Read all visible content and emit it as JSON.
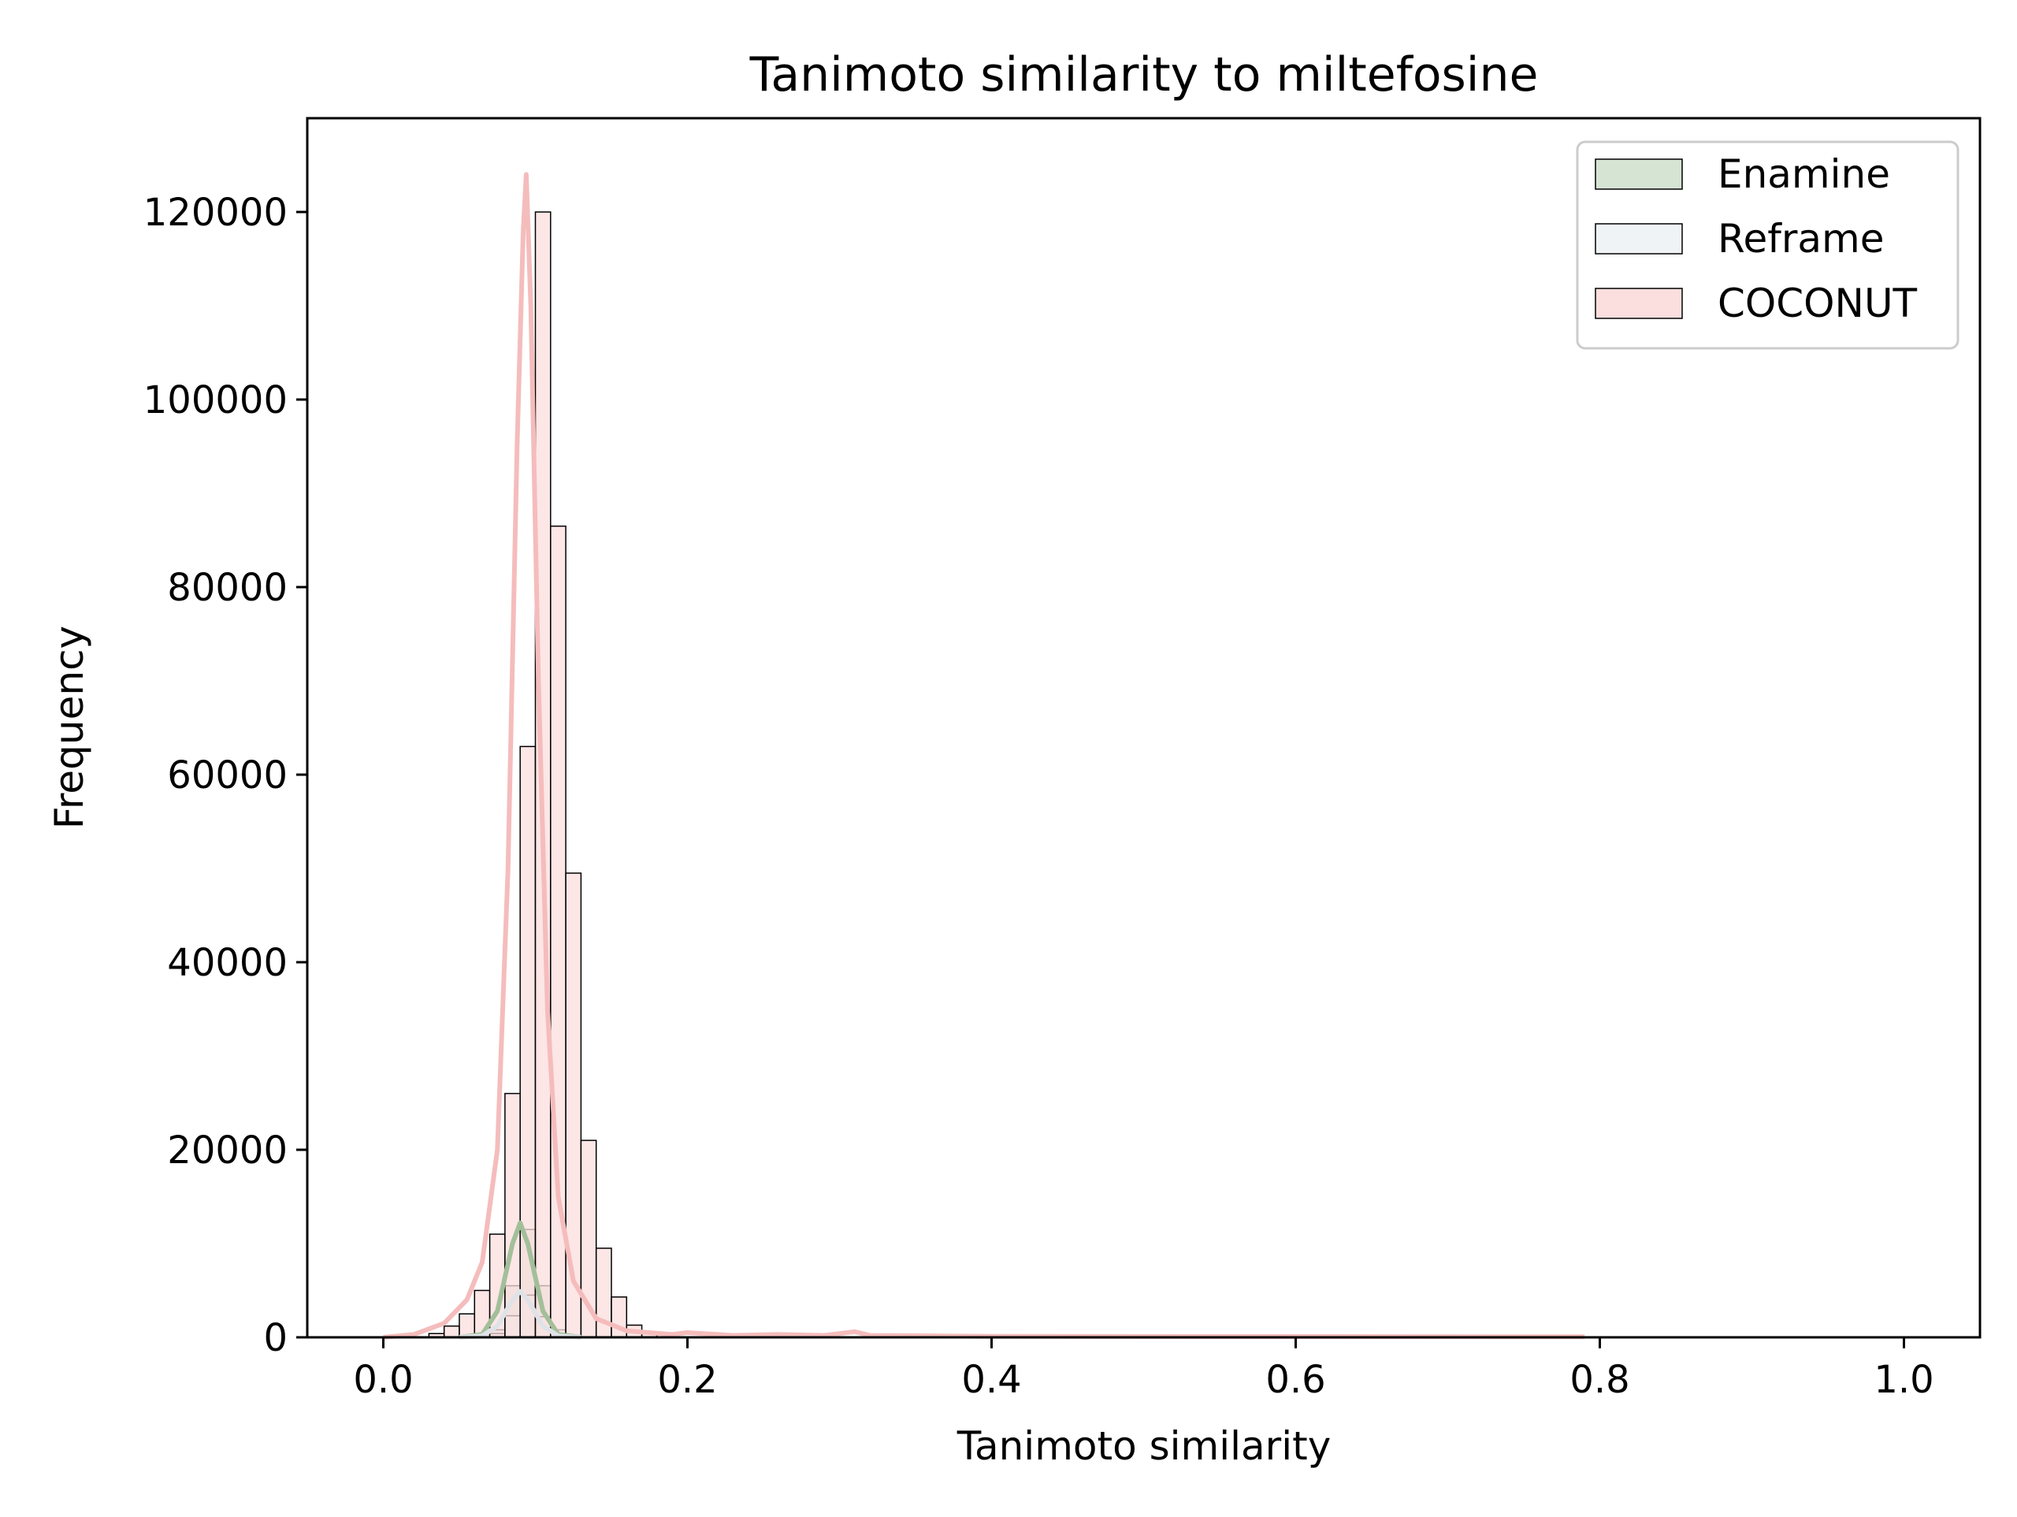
{
  "chart_data": {
    "type": "histogram",
    "title": "Tanimoto similarity to miltefosine",
    "xlabel": "Tanimoto similarity",
    "ylabel": "Frequency",
    "xlim": [
      -0.05,
      1.05
    ],
    "ylim": [
      0,
      130000
    ],
    "xticks": [
      0.0,
      0.2,
      0.4,
      0.6,
      0.8,
      1.0
    ],
    "xtick_labels": [
      "0.0",
      "0.2",
      "0.4",
      "0.6",
      "0.8",
      "1.0"
    ],
    "yticks": [
      0,
      20000,
      40000,
      60000,
      80000,
      100000,
      120000
    ],
    "ytick_labels": [
      "0",
      "20000",
      "40000",
      "60000",
      "80000",
      "100000",
      "120000"
    ],
    "grid": false,
    "legend_position": "top-right",
    "bin_width": 0.01,
    "series": [
      {
        "name": "Enamine",
        "fill": "#d6e4d3",
        "line": "#a3bf9a",
        "bins": [
          {
            "x": 0.07,
            "count": 800
          },
          {
            "x": 0.08,
            "count": 5500
          },
          {
            "x": 0.09,
            "count": 11500
          },
          {
            "x": 0.1,
            "count": 5500
          },
          {
            "x": 0.11,
            "count": 800
          }
        ],
        "kde": [
          [
            0.05,
            0
          ],
          [
            0.065,
            300
          ],
          [
            0.075,
            2800
          ],
          [
            0.085,
            10000
          ],
          [
            0.09,
            12200
          ],
          [
            0.095,
            10000
          ],
          [
            0.105,
            2800
          ],
          [
            0.115,
            300
          ],
          [
            0.13,
            0
          ]
        ]
      },
      {
        "name": "Reframe",
        "fill": "#f0f3f6",
        "line": "#dfe3e8",
        "bins": [
          {
            "x": 0.07,
            "count": 400
          },
          {
            "x": 0.08,
            "count": 2300
          },
          {
            "x": 0.09,
            "count": 4500
          },
          {
            "x": 0.1,
            "count": 2200
          },
          {
            "x": 0.11,
            "count": 400
          }
        ],
        "kde": [
          [
            0.05,
            0
          ],
          [
            0.065,
            150
          ],
          [
            0.075,
            1200
          ],
          [
            0.085,
            4000
          ],
          [
            0.09,
            4900
          ],
          [
            0.095,
            4000
          ],
          [
            0.105,
            1200
          ],
          [
            0.115,
            150
          ],
          [
            0.13,
            0
          ]
        ]
      },
      {
        "name": "COCONUT",
        "fill": "#fbdede",
        "line": "#f5bcbc",
        "bins": [
          {
            "x": 0.03,
            "count": 400
          },
          {
            "x": 0.04,
            "count": 1200
          },
          {
            "x": 0.05,
            "count": 2500
          },
          {
            "x": 0.06,
            "count": 5000
          },
          {
            "x": 0.07,
            "count": 11000
          },
          {
            "x": 0.08,
            "count": 26000
          },
          {
            "x": 0.09,
            "count": 63000
          },
          {
            "x": 0.1,
            "count": 120000
          },
          {
            "x": 0.11,
            "count": 86500
          },
          {
            "x": 0.12,
            "count": 49500
          },
          {
            "x": 0.13,
            "count": 21000
          },
          {
            "x": 0.14,
            "count": 9500
          },
          {
            "x": 0.15,
            "count": 4300
          },
          {
            "x": 0.16,
            "count": 1300
          },
          {
            "x": 0.17,
            "count": 400
          }
        ],
        "kde": [
          [
            0.0,
            0
          ],
          [
            0.02,
            300
          ],
          [
            0.04,
            1500
          ],
          [
            0.055,
            4000
          ],
          [
            0.065,
            8000
          ],
          [
            0.075,
            20000
          ],
          [
            0.082,
            50000
          ],
          [
            0.088,
            95000
          ],
          [
            0.092,
            118000
          ],
          [
            0.094,
            124000
          ],
          [
            0.097,
            110000
          ],
          [
            0.102,
            70000
          ],
          [
            0.108,
            35000
          ],
          [
            0.115,
            15000
          ],
          [
            0.125,
            6000
          ],
          [
            0.14,
            2000
          ],
          [
            0.16,
            700
          ],
          [
            0.19,
            300
          ],
          [
            0.2,
            500
          ],
          [
            0.23,
            200
          ],
          [
            0.26,
            300
          ],
          [
            0.29,
            200
          ],
          [
            0.31,
            600
          ],
          [
            0.32,
            200
          ],
          [
            0.4,
            100
          ],
          [
            0.6,
            80
          ],
          [
            0.79,
            60
          ]
        ]
      }
    ]
  }
}
